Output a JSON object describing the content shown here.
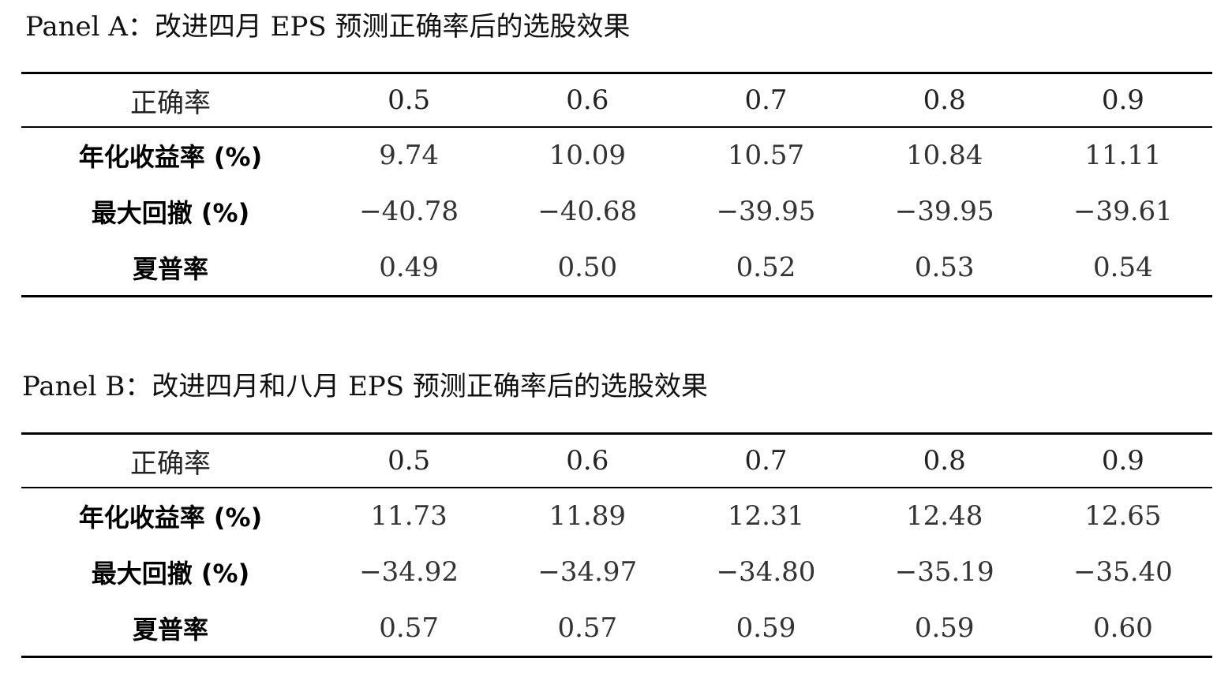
{
  "panel_a": {
    "title": "Panel A：改进四月 EPS 预测正确率后的选股效果",
    "header": [
      "正确率",
      "0.5",
      "0.6",
      "0.7",
      "0.8",
      "0.9"
    ],
    "rows": [
      [
        "年化收益率 (%)",
        "9.74",
        "10.09",
        "10.57",
        "10.84",
        "11.11"
      ],
      [
        "最大回撤 (%)",
        "−40.78",
        "−40.68",
        "−39.95",
        "−39.95",
        "−39.61"
      ],
      [
        "夏普率",
        "0.49",
        "0.50",
        "0.52",
        "0.53",
        "0.54"
      ]
    ]
  },
  "panel_b": {
    "title": "Panel B：改进四月和八月 EPS 预测正确率后的选股效果",
    "header": [
      "正确率",
      "0.5",
      "0.6",
      "0.7",
      "0.8",
      "0.9"
    ],
    "rows": [
      [
        "年化收益率 (%)",
        "11.73",
        "11.89",
        "12.31",
        "12.48",
        "12.65"
      ],
      [
        "最大回撤 (%)",
        "−34.92",
        "−34.97",
        "−34.80",
        "−35.19",
        "−35.40"
      ],
      [
        "夏普率",
        "0.57",
        "0.57",
        "0.59",
        "0.59",
        "0.60"
      ]
    ]
  }
}
